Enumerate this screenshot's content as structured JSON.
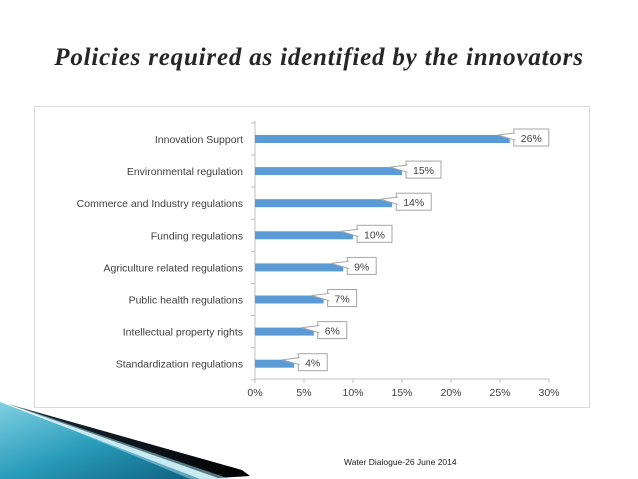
{
  "slide": {
    "title": "Policies required as identified by the innovators",
    "footer": "Water Dialogue-26 June 2014"
  },
  "colors": {
    "bar": "#5b9bd5",
    "axis": "#bfbfbf",
    "callout_border": "#a6a6a6",
    "text": "#404040"
  },
  "chart_data": {
    "type": "bar",
    "orientation": "horizontal",
    "title": "",
    "xlabel": "",
    "ylabel": "",
    "categories": [
      "Innovation Support",
      "Environmental regulation",
      "Commerce and Industry regulations",
      "Funding regulations",
      "Agriculture related regulations",
      "Public health regulations",
      "Intellectual property rights",
      "Standardization regulations"
    ],
    "values": [
      26,
      15,
      14,
      10,
      9,
      7,
      6,
      4
    ],
    "data_labels": [
      "26%",
      "15%",
      "14%",
      "10%",
      "9%",
      "7%",
      "6%",
      "4%"
    ],
    "xlim": [
      0,
      30
    ],
    "x_ticks": [
      0,
      5,
      10,
      15,
      20,
      25,
      30
    ],
    "x_tick_labels": [
      "0%",
      "5%",
      "10%",
      "15%",
      "20%",
      "25%",
      "30%"
    ],
    "grid": false,
    "legend": "none"
  }
}
